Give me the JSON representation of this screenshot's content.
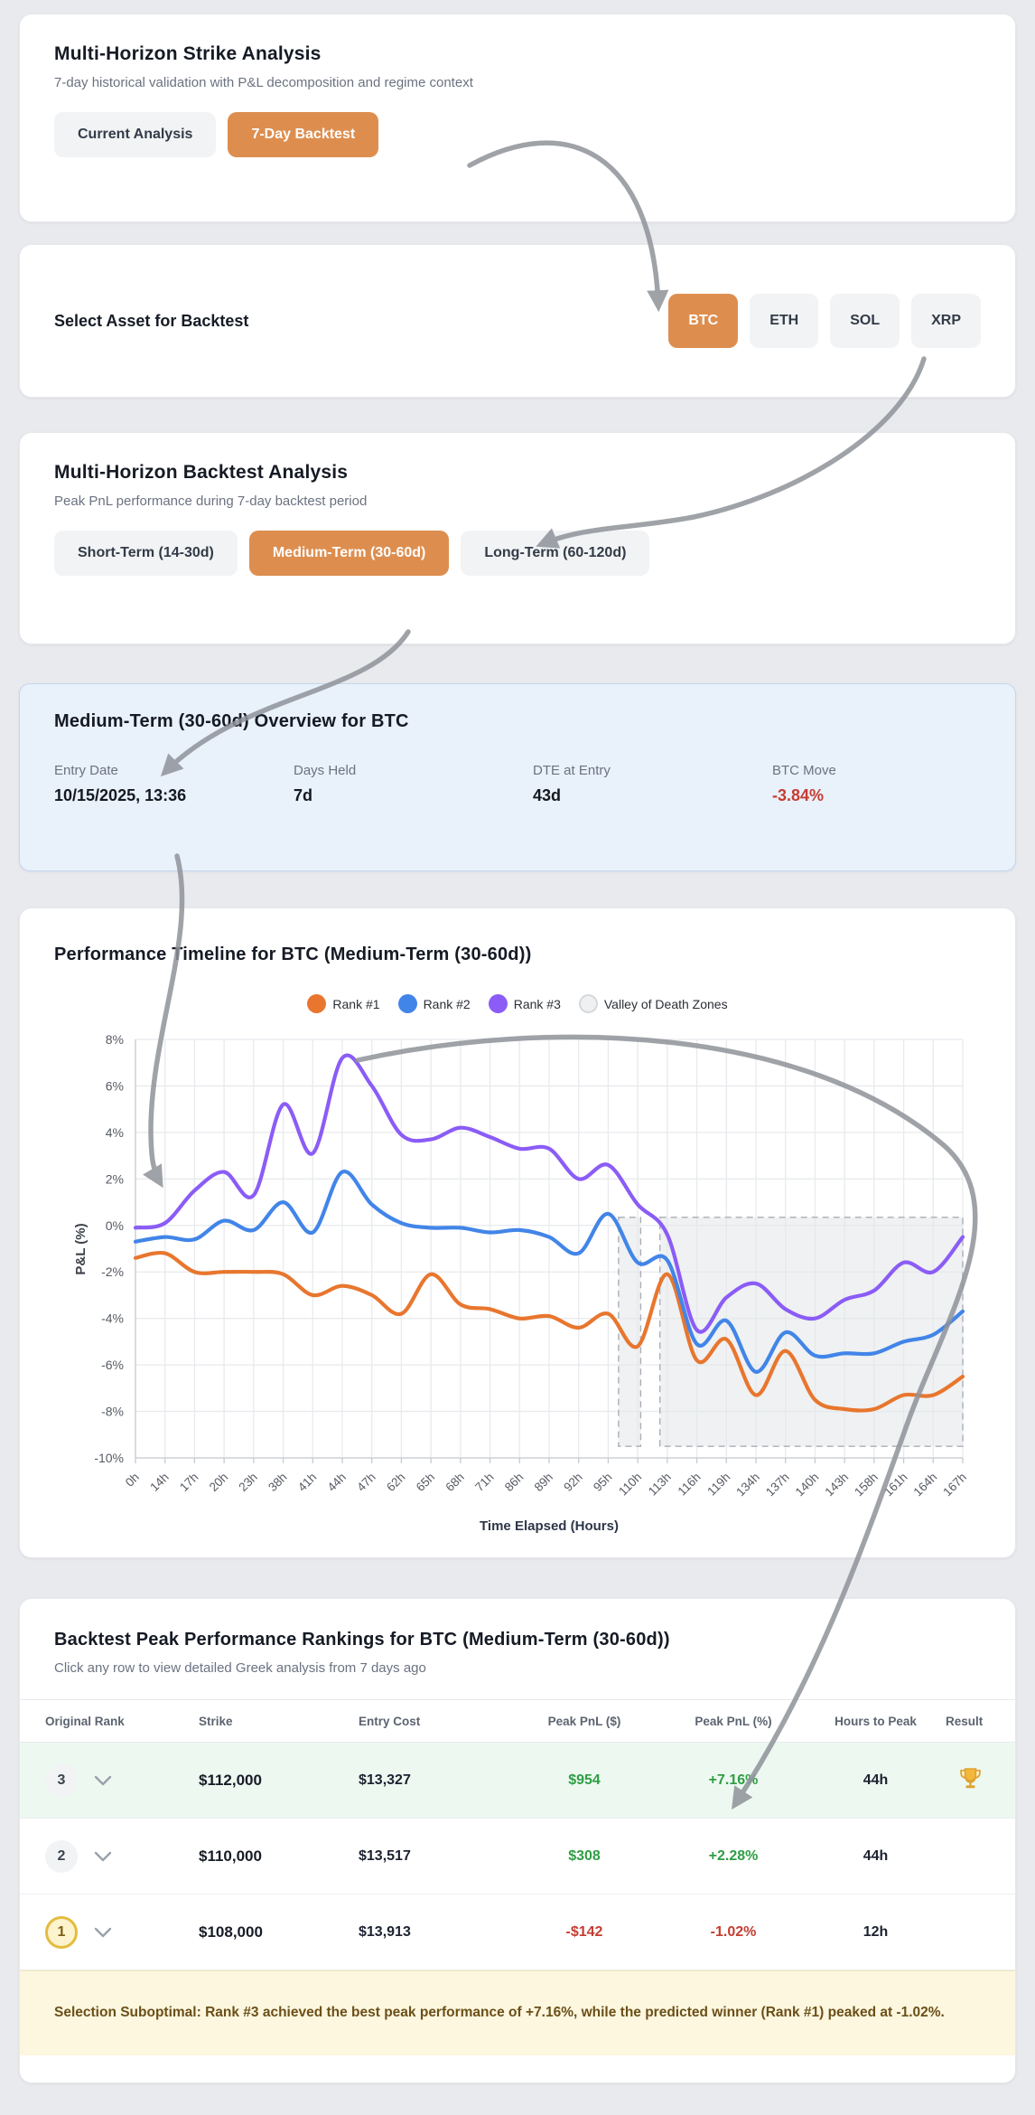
{
  "strike_card": {
    "title": "Multi-Horizon Strike Analysis",
    "subtitle": "7-day historical validation with P&L decomposition and regime context",
    "tabs": [
      {
        "label": "Current Analysis",
        "active": false
      },
      {
        "label": "7-Day Backtest",
        "active": true
      }
    ]
  },
  "asset_card": {
    "title": "Select Asset for Backtest",
    "assets": [
      {
        "label": "BTC",
        "active": true
      },
      {
        "label": "ETH",
        "active": false
      },
      {
        "label": "SOL",
        "active": false
      },
      {
        "label": "XRP",
        "active": false
      }
    ]
  },
  "horizon_card": {
    "title": "Multi-Horizon Backtest Analysis",
    "subtitle": "Peak PnL performance during 7-day backtest period",
    "tabs": [
      {
        "label": "Short-Term (14-30d)",
        "active": false
      },
      {
        "label": "Medium-Term (30-60d)",
        "active": true
      },
      {
        "label": "Long-Term (60-120d)",
        "active": false
      }
    ]
  },
  "overview_card": {
    "title": "Medium-Term (30-60d) Overview for BTC",
    "stats": [
      {
        "label": "Entry Date",
        "value": "10/15/2025, 13:36",
        "negative": false
      },
      {
        "label": "Days Held",
        "value": "7d",
        "negative": false
      },
      {
        "label": "DTE at Entry",
        "value": "43d",
        "negative": false
      },
      {
        "label": "BTC Move",
        "value": "-3.84%",
        "negative": true
      }
    ]
  },
  "chart_card": {
    "title": "Performance Timeline for BTC (Medium-Term (30-60d))",
    "legend": [
      {
        "label": "Rank #1",
        "color": "#e8762e"
      },
      {
        "label": "Rank #2",
        "color": "#4285e8"
      },
      {
        "label": "Rank #3",
        "color": "#8b5cf6"
      },
      {
        "label": "Valley of Death Zones",
        "color": "#eef0f2",
        "border": "#d5d8dc"
      }
    ]
  },
  "chart_data": {
    "type": "line",
    "title": "Performance Timeline for BTC (Medium-Term (30-60d))",
    "xlabel": "Time Elapsed (Hours)",
    "ylabel": "P&L (%)",
    "ylim": [
      -10,
      8
    ],
    "ytick_step": 2,
    "grid": true,
    "legend_position": "top-center",
    "x_labels": [
      "0h",
      "14h",
      "17h",
      "20h",
      "23h",
      "38h",
      "41h",
      "44h",
      "47h",
      "62h",
      "65h",
      "68h",
      "71h",
      "86h",
      "89h",
      "92h",
      "95h",
      "110h",
      "113h",
      "116h",
      "119h",
      "134h",
      "137h",
      "140h",
      "143h",
      "158h",
      "161h",
      "164h",
      "167h"
    ],
    "series": [
      {
        "name": "Rank #1",
        "color": "#e8762e",
        "values": [
          -1.4,
          -1.2,
          -2.0,
          -2.0,
          -2.0,
          -2.1,
          -3.0,
          -2.6,
          -3.0,
          -3.8,
          -2.1,
          -3.4,
          -3.6,
          -4.0,
          -3.9,
          -4.4,
          -3.8,
          -5.2,
          -2.1,
          -5.8,
          -4.9,
          -7.3,
          -5.4,
          -7.5,
          -7.9,
          -7.9,
          -7.3,
          -7.3,
          -6.5
        ]
      },
      {
        "name": "Rank #2",
        "color": "#4285e8",
        "values": [
          -0.7,
          -0.5,
          -0.6,
          0.2,
          -0.2,
          1.0,
          -0.3,
          2.3,
          0.9,
          0.1,
          -0.1,
          -0.1,
          -0.3,
          -0.2,
          -0.5,
          -1.2,
          0.5,
          -1.6,
          -1.5,
          -5.1,
          -4.1,
          -6.3,
          -4.6,
          -5.6,
          -5.5,
          -5.5,
          -5.0,
          -4.7,
          -3.7
        ]
      },
      {
        "name": "Rank #3",
        "color": "#8b5cf6",
        "values": [
          -0.1,
          0.1,
          1.5,
          2.3,
          1.3,
          5.2,
          3.1,
          7.2,
          6.0,
          3.9,
          3.7,
          4.2,
          3.8,
          3.3,
          3.3,
          2.0,
          2.6,
          0.9,
          -0.4,
          -4.5,
          -3.1,
          -2.5,
          -3.6,
          -4.0,
          -3.2,
          -2.8,
          -1.6,
          -2.0,
          -0.5
        ]
      }
    ],
    "valley_zones": [
      {
        "from_index": 16.35,
        "to_index": 17.1
      },
      {
        "from_index": 17.75,
        "to_index": 28
      }
    ],
    "zone_top": 0.35,
    "zone_bottom": -9.5
  },
  "table_card": {
    "title": "Backtest Peak Performance Rankings for BTC (Medium-Term (30-60d))",
    "subtitle": "Click any row to view detailed Greek analysis from 7 days ago",
    "columns": [
      "Original Rank",
      "Strike",
      "Entry Cost",
      "Peak PnL ($)",
      "Peak PnL (%)",
      "Hours to Peak",
      "Result"
    ],
    "rows": [
      {
        "rank": "3",
        "strike": "$112,000",
        "entry_cost": "$13,327",
        "peak_pnl_usd": "$954",
        "peak_pnl_pct": "+7.16%",
        "hours": "44h",
        "result": "trophy"
      },
      {
        "rank": "2",
        "strike": "$110,000",
        "entry_cost": "$13,517",
        "peak_pnl_usd": "$308",
        "peak_pnl_pct": "+2.28%",
        "hours": "44h",
        "result": ""
      },
      {
        "rank": "1",
        "strike": "$108,000",
        "entry_cost": "$13,913",
        "peak_pnl_usd": "-$142",
        "peak_pnl_pct": "-1.02%",
        "hours": "12h",
        "result": ""
      }
    ],
    "note": "Selection Suboptimal: Rank #3 achieved the best peak performance of +7.16%, while the predicted winner (Rank #1) peaked at -1.02%."
  }
}
